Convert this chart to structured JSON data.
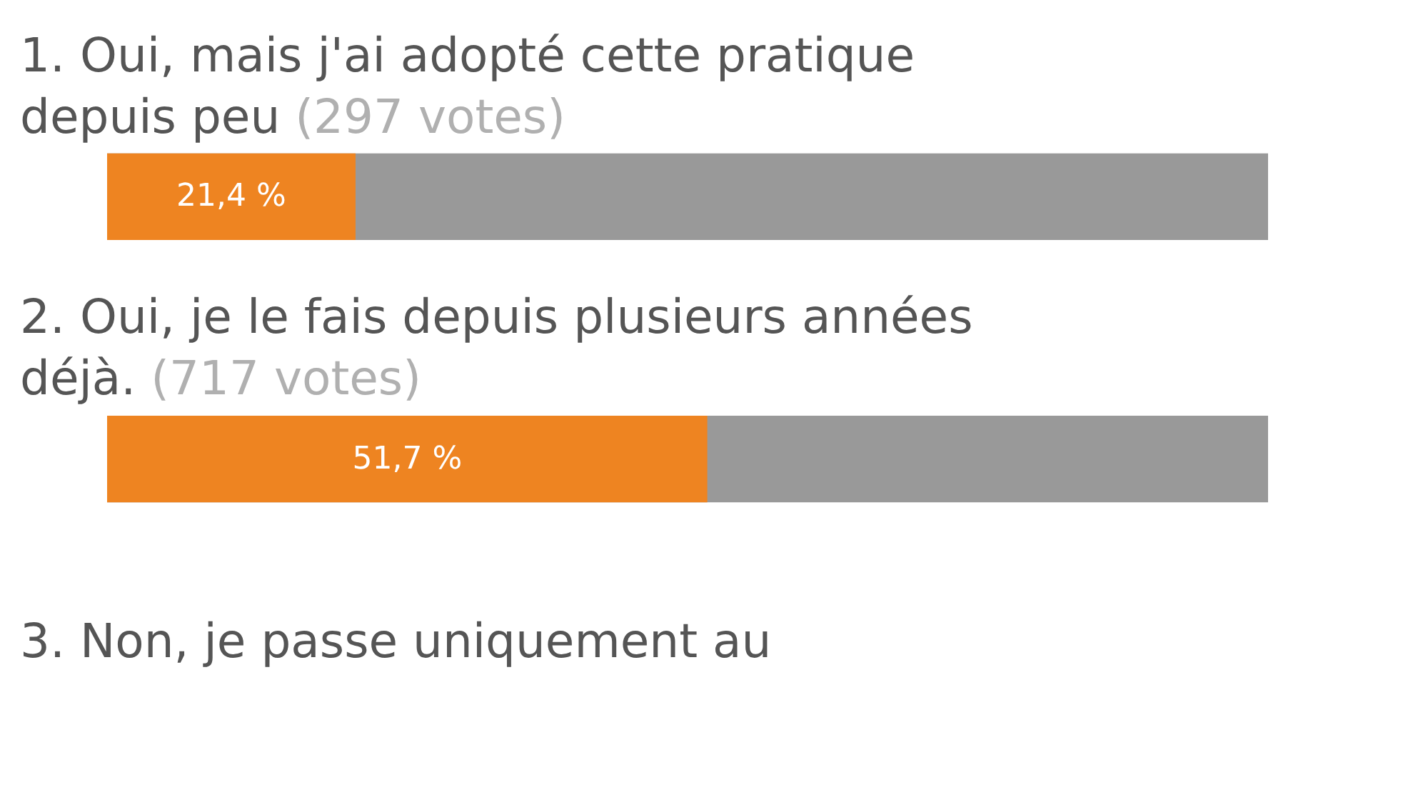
{
  "chart_data": {
    "type": "bar",
    "orientation": "horizontal",
    "categories": [
      "1. Oui, mais j'ai adopté cette pratique depuis peu",
      "2. Oui, je le fais depuis plusieurs années déjà.",
      "3. Non, je passe uniquement au"
    ],
    "values": [
      21.4,
      51.7,
      null
    ],
    "value_labels": [
      "21,4 %",
      "51,7 %",
      null
    ],
    "color": "#ee8421",
    "xlim": [
      0,
      100
    ],
    "tick_labels": false,
    "annotations": [
      "(297 votes)",
      "(717 votes)"
    ]
  }
}
